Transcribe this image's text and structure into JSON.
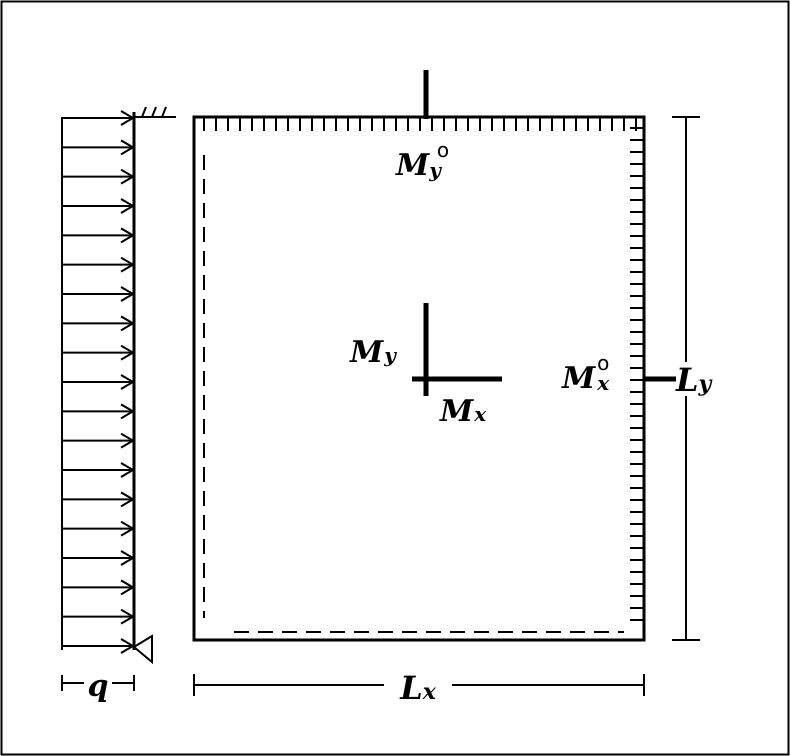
{
  "labels": {
    "q": "q",
    "Lx_main": "L",
    "Lx_sub": "x",
    "Ly_main": "L",
    "Ly_sub": "y",
    "Mx_main": "M",
    "Mx_sub": "x",
    "My_main": "M",
    "My_sub": "y",
    "My0_main": "M",
    "My0_sub": "y",
    "My0_sup": "o",
    "Mx0_main": "M",
    "Mx0_sub": "x",
    "Mx0_sup": "o"
  },
  "load": {
    "arrow_count": 19
  },
  "colors": {
    "stroke": "#000000",
    "background": "#ffffff"
  }
}
